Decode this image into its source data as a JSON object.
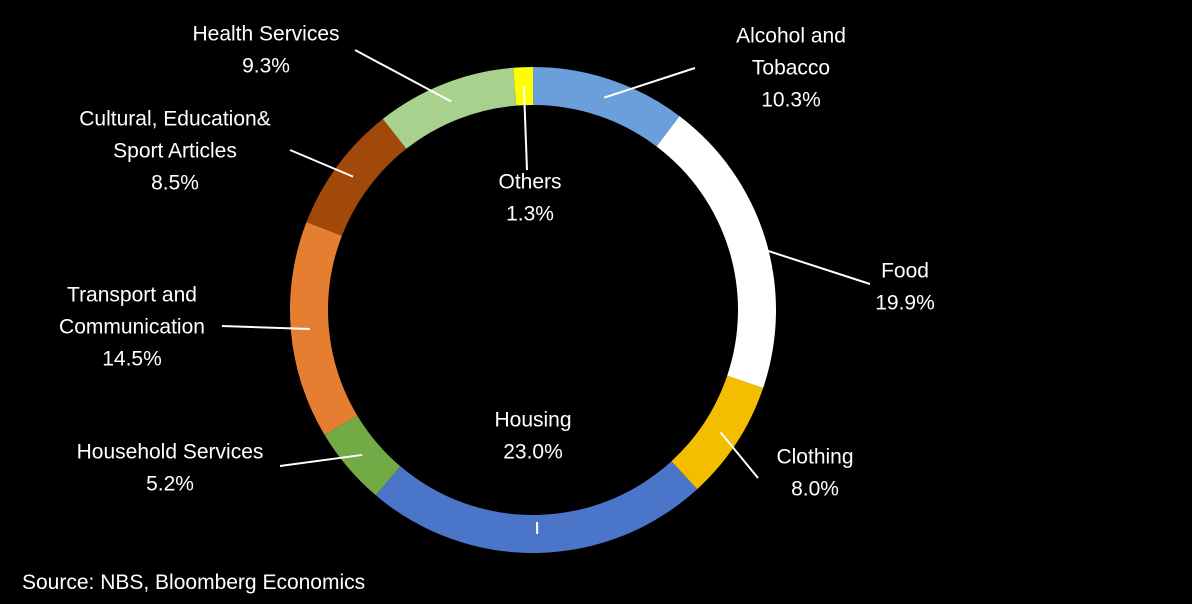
{
  "chart_data": {
    "type": "pie",
    "donut": true,
    "title": "",
    "slices": [
      {
        "label": [
          "Alcohol and",
          "Tobacco"
        ],
        "value_text": "10.3%",
        "value": 10.3,
        "color": "#6a9fdb"
      },
      {
        "label": [
          "Food"
        ],
        "value_text": "19.9%",
        "value": 19.9,
        "color": "#ffffff"
      },
      {
        "label": [
          "Clothing"
        ],
        "value_text": "8.0%",
        "value": 8.0,
        "color": "#f5bd00"
      },
      {
        "label": [
          "Housing"
        ],
        "value_text": "23.0%",
        "value": 23.0,
        "color": "#4a75c9"
      },
      {
        "label": [
          "Household Services"
        ],
        "value_text": "5.2%",
        "value": 5.2,
        "color": "#72ab45"
      },
      {
        "label": [
          "Transport and",
          "Communication"
        ],
        "value_text": "14.5%",
        "value": 14.5,
        "color": "#e67e31"
      },
      {
        "label": [
          "Cultural, Education&",
          "Sport Articles"
        ],
        "value_text": "8.5%",
        "value": 8.5,
        "color": "#a0490a"
      },
      {
        "label": [
          "Health Services"
        ],
        "value_text": "9.3%",
        "value": 9.3,
        "color": "#a9d18e"
      },
      {
        "label": [
          "Others"
        ],
        "value_text": "1.3%",
        "value": 1.3,
        "color": "#ffff00"
      }
    ]
  },
  "source": "Source: NBS, Bloomberg Economics"
}
